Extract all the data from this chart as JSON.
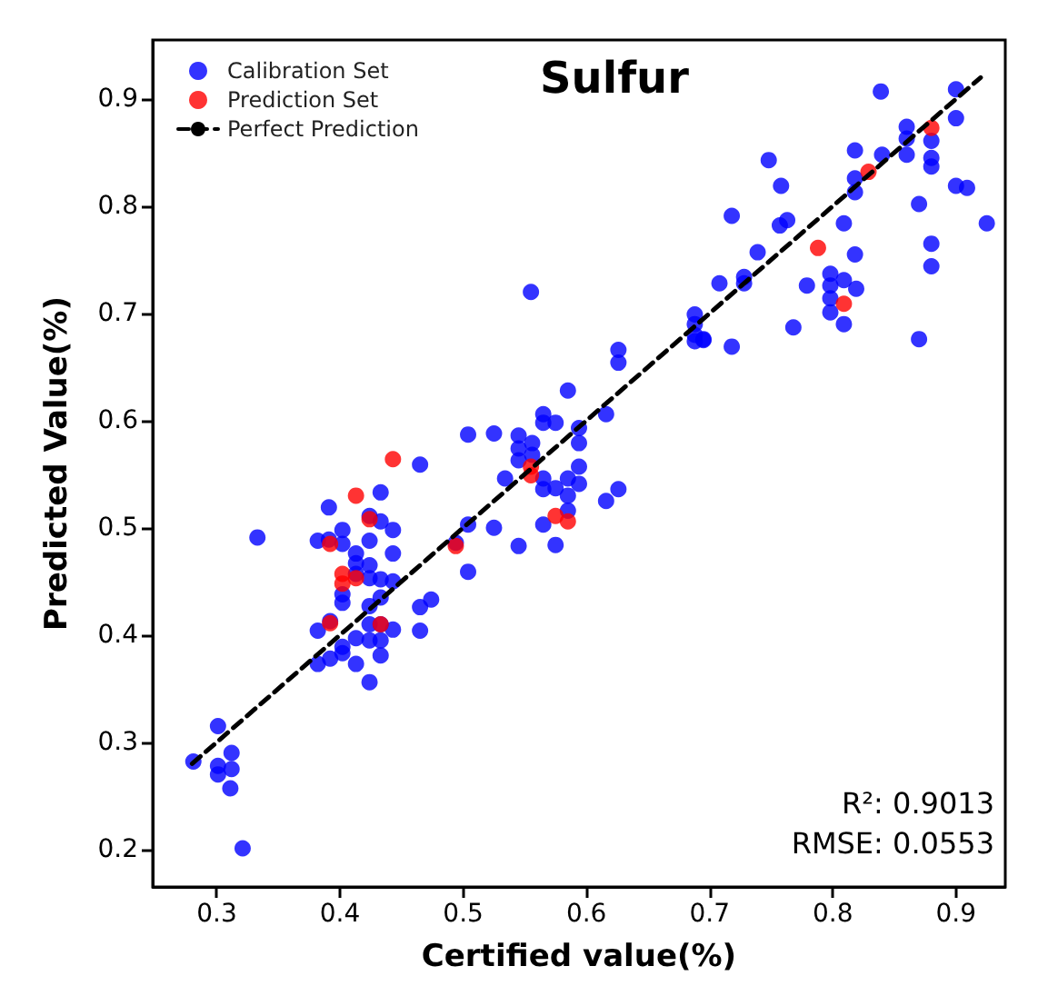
{
  "chart_data": {
    "type": "scatter",
    "title": "Sulfur",
    "xlabel": "Certified value(%)",
    "ylabel": "Predicted Value(%)",
    "xlim": [
      0.248,
      0.94
    ],
    "ylim": [
      0.165,
      0.955
    ],
    "xticks": [
      0.3,
      0.4,
      0.5,
      0.6,
      0.7,
      0.8,
      0.9
    ],
    "yticks": [
      0.2,
      0.3,
      0.4,
      0.5,
      0.6,
      0.7,
      0.8,
      0.9
    ],
    "grid": false,
    "legend": "top left",
    "marker": "circle",
    "annotations": [
      "R²: 0.9013",
      "RMSE: 0.0553"
    ],
    "series": [
      {
        "name": "Calibration Set",
        "color": "#0000ff",
        "x": [
          0.281,
          0.301,
          0.301,
          0.301,
          0.312,
          0.312,
          0.311,
          0.321,
          0.333,
          0.382,
          0.382,
          0.382,
          0.391,
          0.391,
          0.392,
          0.392,
          0.402,
          0.402,
          0.402,
          0.402,
          0.402,
          0.402,
          0.413,
          0.413,
          0.413,
          0.413,
          0.413,
          0.424,
          0.424,
          0.424,
          0.424,
          0.424,
          0.424,
          0.424,
          0.424,
          0.433,
          0.433,
          0.433,
          0.433,
          0.433,
          0.433,
          0.433,
          0.443,
          0.443,
          0.443,
          0.443,
          0.465,
          0.465,
          0.465,
          0.474,
          0.494,
          0.504,
          0.504,
          0.504,
          0.525,
          0.545,
          0.545,
          0.545,
          0.556,
          0.556,
          0.565,
          0.565,
          0.575,
          0.585,
          0.594,
          0.594,
          0.594,
          0.594,
          0.534,
          0.565,
          0.565,
          0.575,
          0.585,
          0.585,
          0.585,
          0.616,
          0.626,
          0.616,
          0.626,
          0.626,
          0.525,
          0.545,
          0.565,
          0.575,
          0.555,
          0.688,
          0.695,
          0.839,
          0.9,
          0.86,
          0.86,
          0.86,
          0.88,
          0.88,
          0.88,
          0.9,
          0.84,
          0.818,
          0.818,
          0.818,
          0.748,
          0.758,
          0.9,
          0.909,
          0.87,
          0.925,
          0.718,
          0.757,
          0.763,
          0.809,
          0.739,
          0.88,
          0.88,
          0.818,
          0.708,
          0.728,
          0.728,
          0.779,
          0.798,
          0.798,
          0.798,
          0.798,
          0.809,
          0.819,
          0.809,
          0.768,
          0.87,
          0.688,
          0.688,
          0.688,
          0.695,
          0.718
        ],
        "values": [
          0.282,
          0.315,
          0.278,
          0.27,
          0.29,
          0.275,
          0.257,
          0.201,
          0.491,
          0.488,
          0.404,
          0.373,
          0.519,
          0.489,
          0.413,
          0.378,
          0.498,
          0.485,
          0.438,
          0.43,
          0.389,
          0.383,
          0.476,
          0.467,
          0.457,
          0.397,
          0.373,
          0.511,
          0.488,
          0.465,
          0.453,
          0.427,
          0.41,
          0.395,
          0.356,
          0.533,
          0.506,
          0.452,
          0.435,
          0.41,
          0.395,
          0.381,
          0.498,
          0.476,
          0.45,
          0.405,
          0.559,
          0.426,
          0.404,
          0.433,
          0.486,
          0.503,
          0.459,
          0.587,
          0.588,
          0.586,
          0.574,
          0.563,
          0.579,
          0.568,
          0.606,
          0.598,
          0.598,
          0.628,
          0.593,
          0.579,
          0.557,
          0.541,
          0.546,
          0.546,
          0.536,
          0.537,
          0.546,
          0.53,
          0.516,
          0.525,
          0.536,
          0.606,
          0.666,
          0.654,
          0.5,
          0.483,
          0.503,
          0.484,
          0.72,
          0.68,
          0.676,
          0.907,
          0.909,
          0.874,
          0.863,
          0.848,
          0.861,
          0.845,
          0.837,
          0.882,
          0.848,
          0.852,
          0.826,
          0.813,
          0.843,
          0.819,
          0.819,
          0.817,
          0.802,
          0.784,
          0.791,
          0.782,
          0.787,
          0.784,
          0.757,
          0.765,
          0.744,
          0.755,
          0.728,
          0.734,
          0.728,
          0.726,
          0.737,
          0.726,
          0.714,
          0.701,
          0.731,
          0.723,
          0.69,
          0.687,
          0.676,
          0.699,
          0.69,
          0.674,
          0.675,
          0.669
        ]
      },
      {
        "name": "Prediction Set",
        "color": "#ff0000",
        "x": [
          0.443,
          0.413,
          0.424,
          0.392,
          0.402,
          0.402,
          0.413,
          0.392,
          0.433,
          0.494,
          0.555,
          0.555,
          0.575,
          0.585,
          0.88,
          0.829,
          0.788,
          0.809
        ],
        "values": [
          0.564,
          0.53,
          0.508,
          0.485,
          0.457,
          0.448,
          0.453,
          0.411,
          0.41,
          0.483,
          0.557,
          0.549,
          0.511,
          0.506,
          0.873,
          0.832,
          0.761,
          0.709
        ]
      },
      {
        "name": "Perfect Prediction",
        "type": "line",
        "color": "#000000",
        "line_style": "dashed",
        "marker": "none",
        "x": [
          0.28,
          0.92
        ],
        "values": [
          0.28,
          0.92
        ]
      }
    ]
  }
}
